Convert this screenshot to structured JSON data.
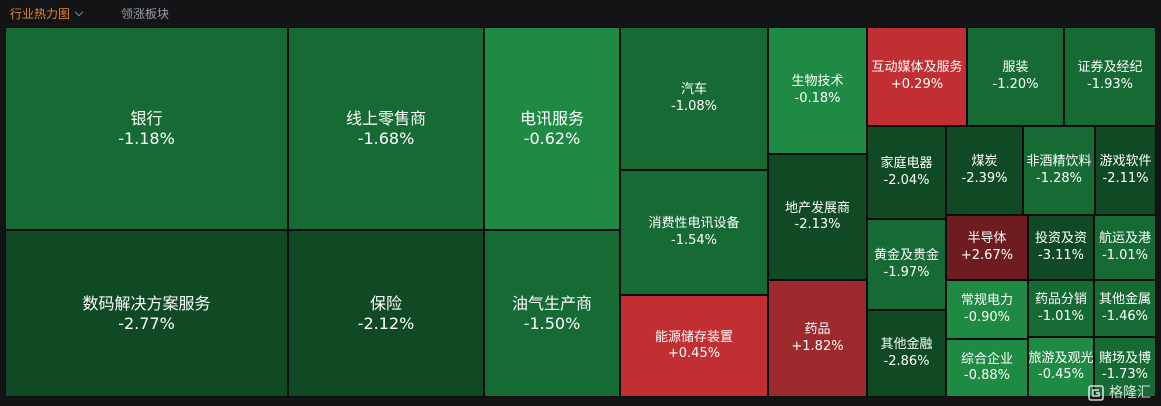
{
  "tabs": {
    "active_label": "行业热力图",
    "other_label": "领涨板块"
  },
  "watermark": {
    "text": "格隆汇"
  },
  "colors": {
    "up": "#c12f33",
    "up_dark": "#6f1c20",
    "up_mid": "#9d2a2d",
    "down_light": "#1e8a43",
    "down_mid": "#166b34",
    "down_dark": "#0f4a24"
  },
  "chart_data": {
    "type": "treemap",
    "title": "",
    "tiles": [
      {
        "name": "银行",
        "change": "-1.18%",
        "value": -1.18
      },
      {
        "name": "线上零售商",
        "change": "-1.68%",
        "value": -1.68
      },
      {
        "name": "电讯服务",
        "change": "-0.62%",
        "value": -0.62
      },
      {
        "name": "汽车",
        "change": "-1.08%",
        "value": -1.08
      },
      {
        "name": "生物技术",
        "change": "-0.18%",
        "value": -0.18
      },
      {
        "name": "互动媒体及服务",
        "change": "+0.29%",
        "value": 0.29
      },
      {
        "name": "服装",
        "change": "-1.20%",
        "value": -1.2
      },
      {
        "name": "证券及经纪",
        "change": "-1.93%",
        "value": -1.93
      },
      {
        "name": "家庭电器",
        "change": "-2.04%",
        "value": -2.04
      },
      {
        "name": "煤炭",
        "change": "-2.39%",
        "value": -2.39
      },
      {
        "name": "非酒精饮料",
        "change": "-1.28%",
        "value": -1.28
      },
      {
        "name": "游戏软件",
        "change": "-2.11%",
        "value": -2.11
      },
      {
        "name": "消费性电讯设备",
        "change": "-1.54%",
        "value": -1.54
      },
      {
        "name": "地产发展商",
        "change": "-2.13%",
        "value": -2.13
      },
      {
        "name": "黄金及贵金",
        "change": "-1.97%",
        "value": -1.97
      },
      {
        "name": "半导体",
        "change": "+2.67%",
        "value": 2.67
      },
      {
        "name": "投资及资",
        "change": "-3.11%",
        "value": -3.11
      },
      {
        "name": "航运及港",
        "change": "-1.01%",
        "value": -1.01
      },
      {
        "name": "数码解决方案服务",
        "change": "-2.77%",
        "value": -2.77
      },
      {
        "name": "保险",
        "change": "-2.12%",
        "value": -2.12
      },
      {
        "name": "油气生产商",
        "change": "-1.50%",
        "value": -1.5
      },
      {
        "name": "能源储存装置",
        "change": "+0.45%",
        "value": 0.45
      },
      {
        "name": "药品",
        "change": "+1.82%",
        "value": 1.82
      },
      {
        "name": "其他金融",
        "change": "-2.86%",
        "value": -2.86
      },
      {
        "name": "常规电力",
        "change": "-0.90%",
        "value": -0.9
      },
      {
        "name": "药品分销",
        "change": "-1.01%",
        "value": -1.01
      },
      {
        "name": "其他金属",
        "change": "-1.46%",
        "value": -1.46
      },
      {
        "name": "综合企业",
        "change": "-0.88%",
        "value": -0.88
      },
      {
        "name": "旅游及观光",
        "change": "-0.45%",
        "value": -0.45
      },
      {
        "name": "赌场及博",
        "change": "-1.73%",
        "value": -1.73
      }
    ]
  }
}
